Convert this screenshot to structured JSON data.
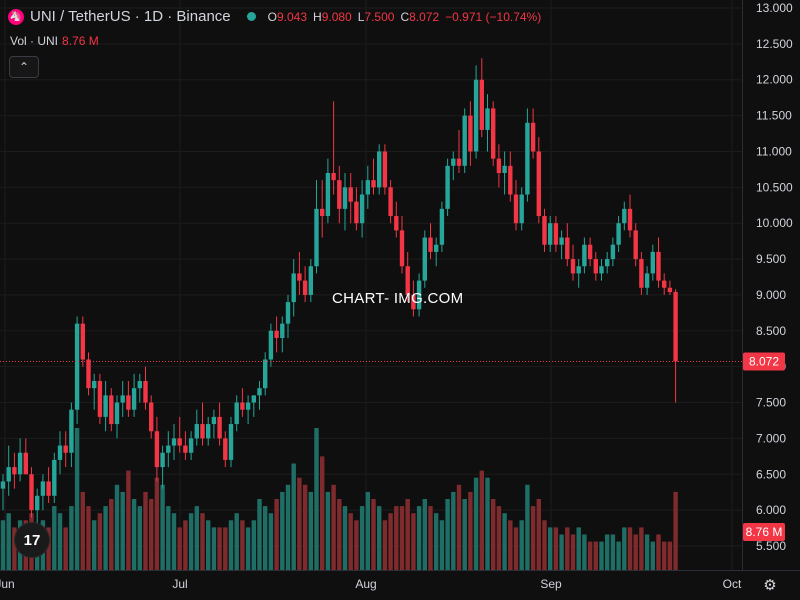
{
  "header": {
    "symbol": "UNI / TetherUS · 1D · Binance",
    "coin_glyph": "🦄",
    "ohlc": [
      {
        "k": "O",
        "v": "9.043"
      },
      {
        "k": "H",
        "v": "9.080"
      },
      {
        "k": "L",
        "v": "7.500"
      },
      {
        "k": "C",
        "v": "8.072"
      },
      {
        "k": "",
        "v": "−0.971 (−10.74%)"
      }
    ]
  },
  "volume": {
    "label": "Vol · UNI",
    "value": "8.76 M"
  },
  "watermark": "CHART- IMG.COM",
  "logo_text": "17",
  "colors": {
    "up": "#26a69a",
    "down": "#f23645",
    "up_vol": "#1f6e66",
    "down_vol": "#7f2b2e",
    "grid": "#1c1c1c",
    "text": "#d1d4dc"
  },
  "chart_data": {
    "type": "candlestick",
    "y_ticks": [
      "13.000",
      "12.500",
      "12.000",
      "11.500",
      "11.000",
      "10.500",
      "10.000",
      "9.500",
      "9.000",
      "8.500",
      "8.000",
      "7.500",
      "7.000",
      "6.500",
      "6.000",
      "5.500"
    ],
    "ylim": [
      5.5,
      13.0
    ],
    "x_labels": [
      "Jun",
      "Jul",
      "Aug",
      "Sep",
      "Oct"
    ],
    "last_price": "8.072",
    "last_volume": "8.76 M",
    "candles": [
      [
        6.3,
        6.5,
        6.0,
        6.4
      ],
      [
        6.4,
        6.9,
        6.2,
        6.6
      ],
      [
        6.6,
        6.8,
        6.3,
        6.5
      ],
      [
        6.5,
        7.0,
        6.4,
        6.8
      ],
      [
        6.8,
        7.0,
        6.5,
        6.5
      ],
      [
        6.5,
        6.6,
        5.9,
        6.0
      ],
      [
        6.0,
        6.3,
        5.8,
        6.2
      ],
      [
        6.2,
        6.5,
        6.0,
        6.4
      ],
      [
        6.4,
        6.6,
        6.1,
        6.2
      ],
      [
        6.2,
        6.8,
        6.1,
        6.7
      ],
      [
        6.7,
        7.1,
        6.5,
        6.9
      ],
      [
        6.9,
        7.1,
        6.6,
        6.8
      ],
      [
        6.8,
        7.5,
        6.6,
        7.4
      ],
      [
        7.4,
        8.7,
        7.2,
        8.6
      ],
      [
        8.6,
        8.7,
        8.0,
        8.1
      ],
      [
        8.1,
        8.2,
        7.6,
        7.7
      ],
      [
        7.7,
        7.9,
        7.4,
        7.8
      ],
      [
        7.8,
        7.9,
        7.2,
        7.3
      ],
      [
        7.3,
        7.8,
        7.1,
        7.6
      ],
      [
        7.6,
        7.7,
        7.1,
        7.2
      ],
      [
        7.2,
        7.6,
        7.0,
        7.5
      ],
      [
        7.5,
        7.8,
        7.3,
        7.6
      ],
      [
        7.6,
        7.8,
        7.3,
        7.4
      ],
      [
        7.4,
        7.9,
        7.3,
        7.7
      ],
      [
        7.7,
        7.9,
        7.5,
        7.8
      ],
      [
        7.8,
        8.0,
        7.4,
        7.5
      ],
      [
        7.5,
        7.6,
        7.0,
        7.1
      ],
      [
        7.1,
        7.3,
        6.4,
        6.6
      ],
      [
        6.6,
        6.9,
        6.3,
        6.8
      ],
      [
        6.8,
        7.1,
        6.6,
        6.9
      ],
      [
        6.9,
        7.2,
        6.7,
        7.0
      ],
      [
        7.0,
        7.3,
        6.8,
        6.9
      ],
      [
        6.9,
        7.1,
        6.7,
        6.8
      ],
      [
        6.8,
        7.1,
        6.7,
        7.0
      ],
      [
        7.0,
        7.4,
        6.9,
        7.2
      ],
      [
        7.2,
        7.5,
        6.9,
        7.0
      ],
      [
        7.0,
        7.3,
        6.9,
        7.2
      ],
      [
        7.2,
        7.4,
        7.0,
        7.3
      ],
      [
        7.3,
        7.5,
        6.9,
        7.0
      ],
      [
        7.0,
        7.1,
        6.6,
        6.7
      ],
      [
        6.7,
        7.3,
        6.6,
        7.2
      ],
      [
        7.2,
        7.6,
        7.1,
        7.5
      ],
      [
        7.5,
        7.7,
        7.3,
        7.4
      ],
      [
        7.4,
        7.6,
        7.2,
        7.5
      ],
      [
        7.5,
        7.6,
        7.3,
        7.6
      ],
      [
        7.6,
        7.8,
        7.4,
        7.7
      ],
      [
        7.7,
        8.2,
        7.6,
        8.1
      ],
      [
        8.1,
        8.6,
        8.0,
        8.5
      ],
      [
        8.5,
        8.7,
        8.2,
        8.4
      ],
      [
        8.4,
        8.7,
        8.2,
        8.6
      ],
      [
        8.6,
        9.0,
        8.4,
        8.9
      ],
      [
        8.9,
        9.5,
        8.7,
        9.3
      ],
      [
        9.3,
        9.6,
        9.0,
        9.2
      ],
      [
        9.2,
        9.4,
        8.9,
        9.0
      ],
      [
        9.0,
        9.5,
        8.9,
        9.4
      ],
      [
        9.4,
        10.6,
        9.3,
        10.2
      ],
      [
        10.2,
        10.6,
        9.8,
        10.1
      ],
      [
        10.1,
        10.9,
        10.0,
        10.7
      ],
      [
        10.7,
        11.7,
        10.4,
        10.6
      ],
      [
        10.6,
        10.8,
        10.0,
        10.2
      ],
      [
        10.2,
        10.7,
        9.9,
        10.5
      ],
      [
        10.5,
        10.7,
        10.0,
        10.3
      ],
      [
        10.3,
        10.5,
        9.9,
        10.0
      ],
      [
        10.0,
        10.6,
        9.8,
        10.4
      ],
      [
        10.4,
        10.8,
        10.2,
        10.6
      ],
      [
        10.6,
        10.9,
        10.4,
        10.5
      ],
      [
        10.5,
        11.1,
        10.4,
        11.0
      ],
      [
        11.0,
        11.1,
        10.4,
        10.5
      ],
      [
        10.5,
        10.6,
        10.0,
        10.1
      ],
      [
        10.1,
        10.3,
        9.8,
        9.9
      ],
      [
        9.9,
        10.1,
        9.3,
        9.4
      ],
      [
        9.4,
        9.6,
        8.9,
        9.0
      ],
      [
        9.0,
        9.2,
        8.7,
        8.8
      ],
      [
        8.8,
        9.3,
        8.7,
        9.2
      ],
      [
        9.2,
        9.9,
        9.1,
        9.8
      ],
      [
        9.8,
        10.0,
        9.5,
        9.6
      ],
      [
        9.6,
        9.8,
        9.4,
        9.7
      ],
      [
        9.7,
        10.3,
        9.6,
        10.2
      ],
      [
        10.2,
        10.9,
        10.1,
        10.8
      ],
      [
        10.8,
        11.0,
        10.6,
        10.9
      ],
      [
        10.9,
        11.3,
        10.7,
        10.8
      ],
      [
        10.8,
        11.6,
        10.7,
        11.5
      ],
      [
        11.5,
        11.7,
        10.8,
        11.0
      ],
      [
        11.0,
        12.2,
        10.9,
        12.0
      ],
      [
        12.0,
        12.3,
        11.2,
        11.3
      ],
      [
        11.3,
        11.8,
        11.0,
        11.6
      ],
      [
        11.6,
        11.7,
        10.8,
        10.9
      ],
      [
        10.9,
        11.1,
        10.5,
        10.7
      ],
      [
        10.7,
        11.0,
        10.4,
        10.8
      ],
      [
        10.8,
        11.0,
        10.3,
        10.4
      ],
      [
        10.4,
        10.6,
        9.9,
        10.0
      ],
      [
        10.0,
        10.5,
        9.9,
        10.4
      ],
      [
        10.4,
        11.6,
        10.3,
        11.4
      ],
      [
        11.4,
        11.6,
        10.9,
        11.0
      ],
      [
        11.0,
        11.2,
        10.0,
        10.1
      ],
      [
        10.1,
        10.2,
        9.6,
        9.7
      ],
      [
        9.7,
        10.1,
        9.6,
        10.0
      ],
      [
        10.0,
        10.1,
        9.6,
        9.7
      ],
      [
        9.7,
        9.9,
        9.5,
        9.8
      ],
      [
        9.8,
        10.0,
        9.4,
        9.5
      ],
      [
        9.5,
        9.7,
        9.2,
        9.3
      ],
      [
        9.3,
        9.5,
        9.1,
        9.4
      ],
      [
        9.4,
        9.8,
        9.3,
        9.7
      ],
      [
        9.7,
        9.8,
        9.4,
        9.5
      ],
      [
        9.5,
        9.6,
        9.2,
        9.3
      ],
      [
        9.3,
        9.5,
        9.2,
        9.4
      ],
      [
        9.4,
        9.6,
        9.3,
        9.5
      ],
      [
        9.5,
        9.8,
        9.4,
        9.7
      ],
      [
        9.7,
        10.1,
        9.6,
        10.0
      ],
      [
        10.0,
        10.3,
        9.9,
        10.2
      ],
      [
        10.2,
        10.4,
        9.8,
        9.9
      ],
      [
        9.9,
        10.0,
        9.4,
        9.5
      ],
      [
        9.5,
        9.6,
        9.0,
        9.1
      ],
      [
        9.1,
        9.4,
        9.0,
        9.3
      ],
      [
        9.3,
        9.7,
        9.2,
        9.6
      ],
      [
        9.6,
        9.8,
        9.1,
        9.2
      ],
      [
        9.2,
        9.3,
        9.0,
        9.1
      ],
      [
        9.1,
        9.2,
        9.0,
        9.04
      ],
      [
        9.043,
        9.08,
        7.5,
        8.072
      ]
    ],
    "volumes": [
      0.35,
      0.4,
      0.3,
      0.35,
      0.35,
      0.4,
      0.3,
      0.35,
      0.3,
      0.45,
      0.4,
      0.3,
      0.45,
      1.0,
      0.55,
      0.45,
      0.35,
      0.4,
      0.45,
      0.5,
      0.6,
      0.55,
      0.7,
      0.5,
      0.45,
      0.55,
      0.5,
      0.65,
      0.6,
      0.45,
      0.4,
      0.3,
      0.35,
      0.4,
      0.45,
      0.4,
      0.35,
      0.3,
      0.3,
      0.3,
      0.35,
      0.4,
      0.35,
      0.3,
      0.35,
      0.5,
      0.45,
      0.4,
      0.5,
      0.55,
      0.6,
      0.75,
      0.65,
      0.6,
      0.55,
      1.0,
      0.8,
      0.55,
      0.6,
      0.5,
      0.45,
      0.4,
      0.35,
      0.45,
      0.55,
      0.5,
      0.45,
      0.35,
      0.4,
      0.45,
      0.45,
      0.5,
      0.4,
      0.45,
      0.5,
      0.45,
      0.4,
      0.35,
      0.5,
      0.55,
      0.6,
      0.5,
      0.55,
      0.65,
      0.7,
      0.65,
      0.5,
      0.45,
      0.4,
      0.35,
      0.3,
      0.35,
      0.6,
      0.45,
      0.5,
      0.35,
      0.3,
      0.3,
      0.25,
      0.3,
      0.25,
      0.3,
      0.25,
      0.2,
      0.2,
      0.2,
      0.25,
      0.25,
      0.2,
      0.3,
      0.3,
      0.25,
      0.3,
      0.25,
      0.2,
      0.25,
      0.2,
      0.2,
      0.55
    ]
  }
}
